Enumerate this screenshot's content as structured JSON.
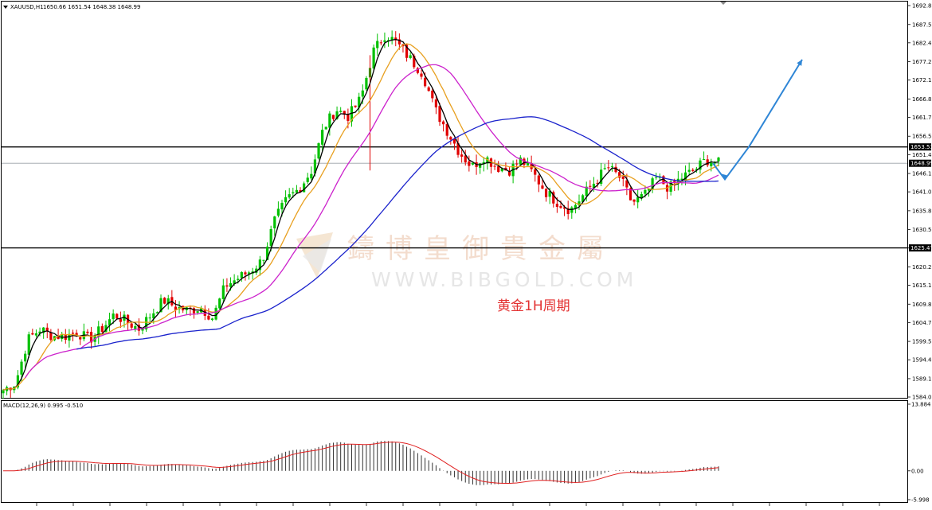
{
  "header": {
    "symbol": "XAUUSD,H1",
    "ohlc": "1650.66 1651.54 1648.38 1648.99",
    "macd_label": "MACD(12,26,9) 0.995 -0.510"
  },
  "watermark": {
    "cn": "鑄博皇御貴金屬",
    "url": "WWW.BIBGOLD.COM"
  },
  "annotation": "黄金1H周期",
  "price_tags": {
    "resistance": "1653.53",
    "current": "1648.99",
    "support": "1625.47"
  },
  "colors": {
    "bull": "#00c000",
    "bear": "#e00000",
    "ma_fast": "#000000",
    "ma_orange": "#e8a020",
    "ma_magenta": "#cc22cc",
    "ma_blue": "#1a22cc",
    "arrow": "#2f86d6",
    "macd_signal": "#e02020",
    "macd_hist": "#333333"
  },
  "chart_data": {
    "type": "candlestick",
    "symbol": "XAUUSD",
    "timeframe": "H1",
    "price_axis_ticks": [
      "1692.80",
      "1687.55",
      "1682.45",
      "1677.20",
      "1672.10",
      "1666.85",
      "1661.75",
      "1656.50",
      "1651.40",
      "1646.15",
      "1641.05",
      "1635.80",
      "1630.55",
      "1625.45",
      "1620.20",
      "1615.10",
      "1609.85",
      "1604.75",
      "1599.50",
      "1594.40",
      "1589.15",
      "1584.05"
    ],
    "ylim": [
      1584.05,
      1692.8
    ],
    "horizontal_levels": [
      1653.53,
      1625.47
    ],
    "current_price": 1648.99,
    "macd": {
      "params": "12,26,9",
      "main": 0.995,
      "signal": -0.51,
      "axis_ticks": [
        "13.884",
        "0.00",
        "-5.998"
      ],
      "ylim": [
        -5.998,
        13.884
      ]
    },
    "close_path": [
      1586,
      1588,
      1600,
      1603,
      1601,
      1601,
      1602,
      1600,
      1603,
      1607,
      1605,
      1603,
      1607,
      1611,
      1609,
      1608,
      1609,
      1606,
      1615,
      1617,
      1619,
      1622,
      1633,
      1639,
      1642,
      1647,
      1659,
      1664,
      1662,
      1667,
      1680,
      1685,
      1682,
      1678,
      1674,
      1664,
      1658,
      1652,
      1648,
      1651,
      1648,
      1647,
      1650,
      1646,
      1641,
      1638,
      1636,
      1640,
      1644,
      1648,
      1645,
      1638,
      1640,
      1645,
      1642,
      1645,
      1647,
      1650,
      1649
    ],
    "projection_arrow": [
      1648.99,
      1644.5,
      1653.5,
      1677.8
    ]
  }
}
